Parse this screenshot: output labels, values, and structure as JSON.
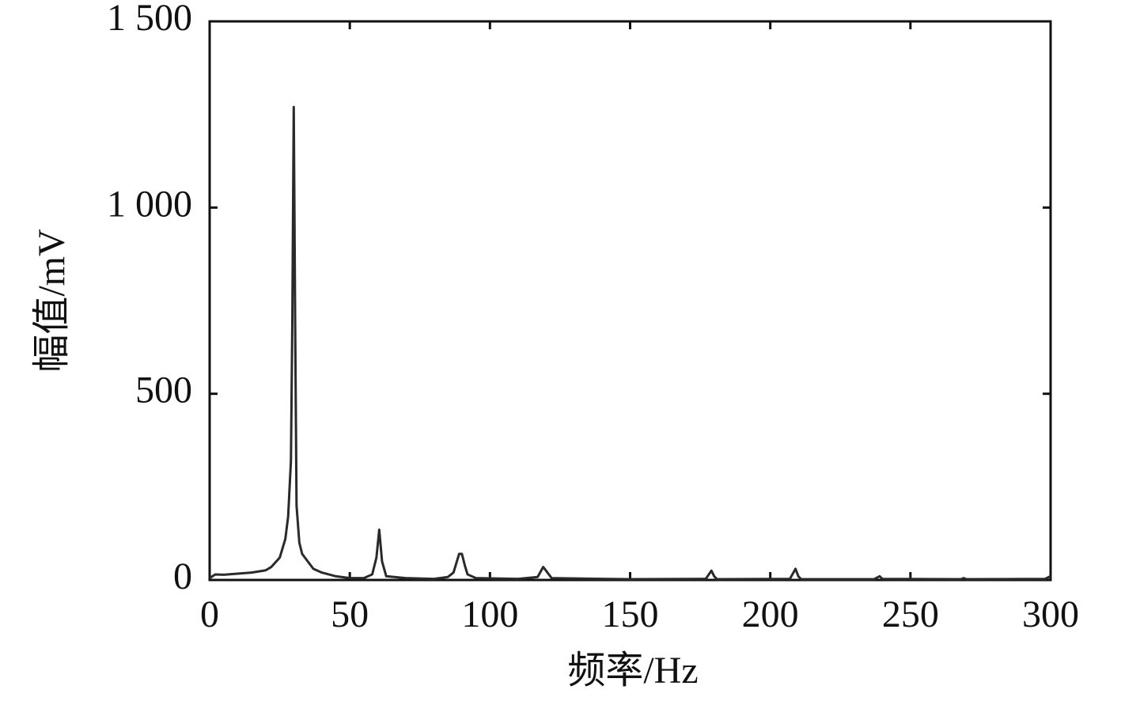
{
  "chart_data": {
    "type": "line",
    "x_label": "频率/Hz",
    "y_label": "幅值/mV",
    "x": [
      0,
      2,
      5,
      10,
      15,
      20,
      22,
      25,
      27,
      28,
      29,
      29.5,
      30,
      30.5,
      31,
      32,
      33,
      35,
      37,
      40,
      45,
      50,
      55,
      58,
      59.5,
      60.5,
      61.5,
      63,
      70,
      80,
      85,
      87,
      88,
      89,
      90,
      91,
      92,
      95,
      110,
      117,
      119,
      120.5,
      122,
      150,
      177,
      179,
      180,
      181,
      207,
      209,
      210,
      211,
      237,
      239,
      240,
      268,
      269,
      270,
      298,
      300
    ],
    "series": [
      {
        "color": "#2a2a2a",
        "values": [
          5,
          15,
          14,
          17,
          20,
          26,
          35,
          60,
          110,
          170,
          320,
          700,
          1270,
          700,
          200,
          100,
          70,
          50,
          30,
          20,
          10,
          5,
          5,
          15,
          60,
          135,
          50,
          10,
          5,
          3,
          8,
          20,
          45,
          70,
          70,
          40,
          15,
          5,
          3,
          8,
          35,
          20,
          5,
          2,
          3,
          25,
          10,
          2,
          3,
          30,
          10,
          2,
          2,
          10,
          3,
          2,
          5,
          2,
          3,
          10
        ]
      }
    ],
    "xlim": [
      0,
      300
    ],
    "xticks": [
      0,
      50,
      100,
      150,
      200,
      250,
      300
    ],
    "ylim": [
      0,
      1500
    ],
    "yticks": [
      0,
      500,
      {
        "value": 1000,
        "label": "1 000"
      },
      {
        "value": 1500,
        "label": "1 500"
      }
    ],
    "grid": false
  }
}
